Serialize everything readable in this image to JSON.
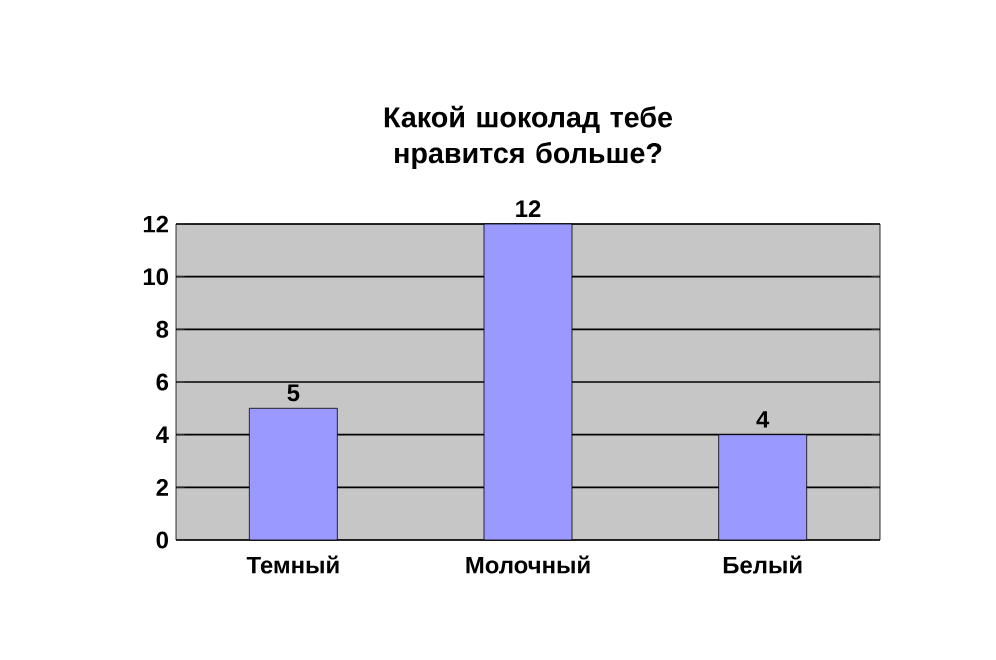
{
  "chart_data": {
    "type": "bar",
    "title": "Какой шоколад тебе нравится больше?",
    "categories": [
      "Темный",
      "Молочный",
      "Белый"
    ],
    "values": [
      5,
      12,
      4
    ],
    "color": "#9999ff",
    "ylim": [
      0,
      12
    ],
    "yticks": [
      0,
      2,
      4,
      6,
      8,
      10,
      12
    ],
    "grid": "y",
    "data_labels": true
  }
}
